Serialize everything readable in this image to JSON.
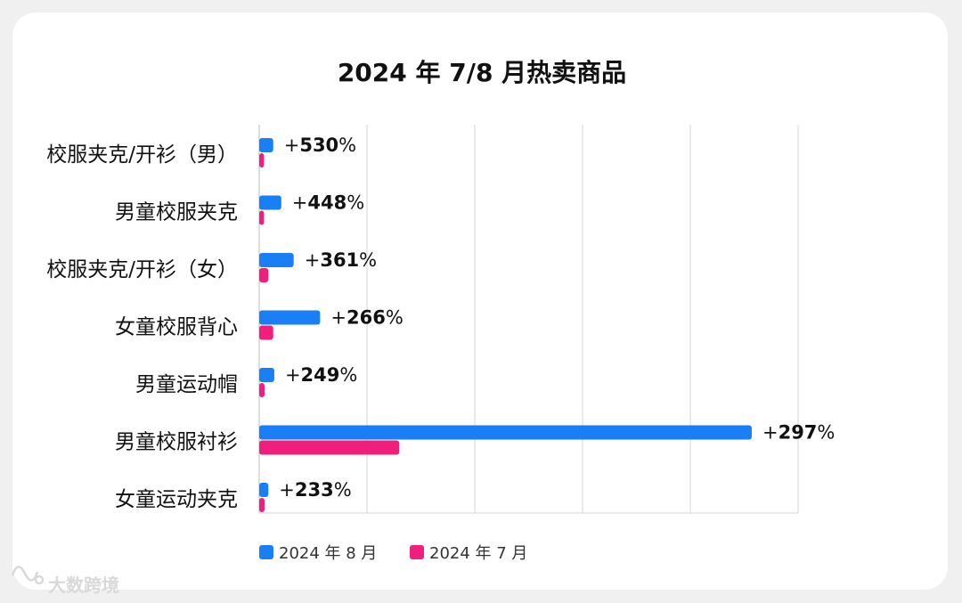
{
  "chart_data": {
    "type": "bar",
    "orientation": "horizontal",
    "title": "2024 年 7/8 月热卖商品",
    "categories": [
      "校服夹克/开衫（男）",
      "男童校服夹克",
      "校服夹克/开衫（女）",
      "女童校服背心",
      "男童运动帽",
      "男童校服衬衫",
      "女童运动夹克"
    ],
    "series": [
      {
        "name": "2024 年 8 月",
        "color": "#1a7ff5",
        "values": [
          2.6,
          4.1,
          6.4,
          11.3,
          2.8,
          91.4,
          1.7
        ]
      },
      {
        "name": "2024 年 7 月",
        "color": "#f01f7c",
        "values": [
          0.9,
          0.9,
          1.7,
          2.6,
          1.0,
          26.0,
          1.0
        ]
      }
    ],
    "data_labels": [
      "+530%",
      "+448%",
      "+361%",
      "+266%",
      "+249%",
      "+297%",
      "+233%"
    ],
    "xlim": [
      0,
      100
    ],
    "grid": true,
    "legend_position": "bottom"
  },
  "watermark": "大数跨境"
}
